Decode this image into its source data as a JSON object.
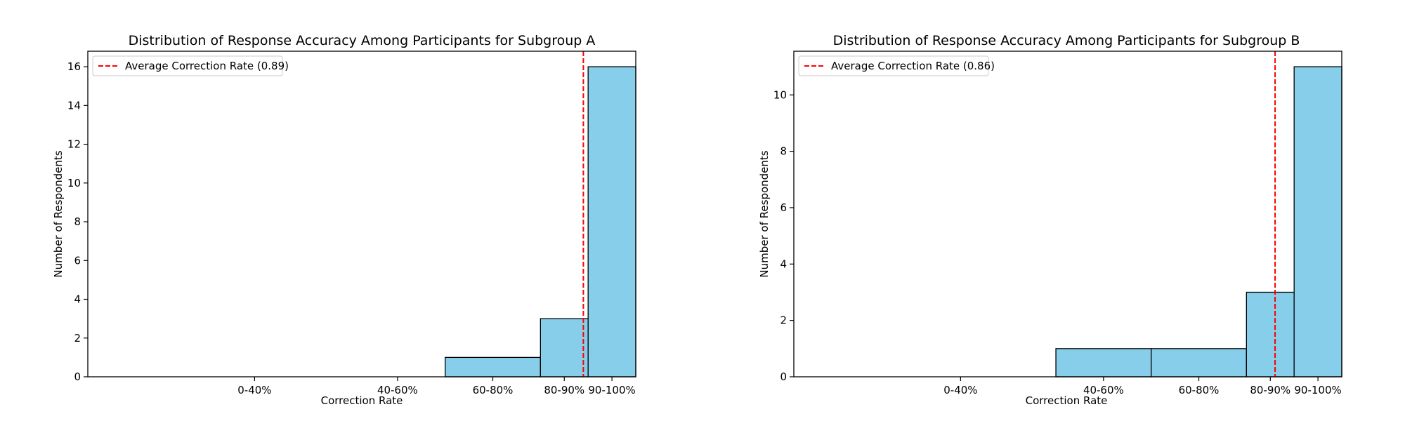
{
  "chart_data": [
    {
      "type": "bar",
      "title": "Distribution of Response Accuracy Among Participants for Subgroup A",
      "xlabel": "Correction Rate",
      "ylabel": "Number of Respondents",
      "categories": [
        "0-40%",
        "40-60%",
        "60-80%",
        "80-90%",
        "90-100%"
      ],
      "bins": [
        [
          0.0,
          0.4
        ],
        [
          0.4,
          0.6
        ],
        [
          0.6,
          0.8
        ],
        [
          0.8,
          0.9
        ],
        [
          0.9,
          1.0
        ]
      ],
      "values": [
        0,
        0,
        1,
        3,
        16
      ],
      "xlim": [
        -0.15,
        1.0
      ],
      "ylim": [
        0,
        16.8
      ],
      "yticks": [
        0,
        2,
        4,
        6,
        8,
        10,
        12,
        14,
        16
      ],
      "average_line": {
        "value": 0.89,
        "label": "Average Correction Rate (0.89)",
        "color": "#ff0000"
      },
      "bar_color": "#87ceeb",
      "legend_position": "top-left",
      "grid": false
    },
    {
      "type": "bar",
      "title": "Distribution of Response Accuracy Among Participants for Subgroup B",
      "xlabel": "Correction Rate",
      "ylabel": "Number of Respondents",
      "categories": [
        "0-40%",
        "40-60%",
        "60-80%",
        "80-90%",
        "90-100%"
      ],
      "bins": [
        [
          0.0,
          0.4
        ],
        [
          0.4,
          0.6
        ],
        [
          0.6,
          0.8
        ],
        [
          0.8,
          0.9
        ],
        [
          0.9,
          1.0
        ]
      ],
      "values": [
        0,
        1,
        1,
        3,
        11
      ],
      "xlim": [
        -0.15,
        1.0
      ],
      "ylim": [
        0,
        11.55
      ],
      "yticks": [
        0,
        2,
        4,
        6,
        8,
        10
      ],
      "average_line": {
        "value": 0.86,
        "label": "Average Correction Rate (0.86)",
        "color": "#ff0000"
      },
      "bar_color": "#87ceeb",
      "legend_position": "top-left",
      "grid": false
    }
  ]
}
